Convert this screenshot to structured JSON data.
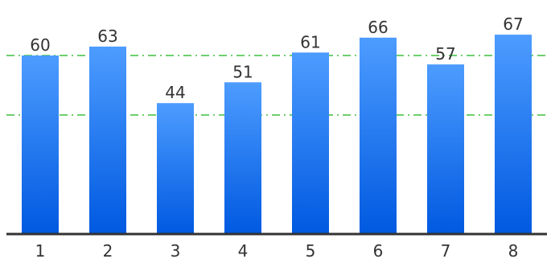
{
  "chart_data": {
    "type": "bar",
    "categories": [
      "1",
      "2",
      "3",
      "4",
      "5",
      "6",
      "7",
      "8"
    ],
    "values": [
      60,
      63,
      44,
      51,
      61,
      66,
      57,
      67
    ],
    "title": "",
    "xlabel": "",
    "ylabel": "",
    "ylim": [
      0,
      70
    ],
    "grid": false,
    "reference_lines": [
      {
        "value": 60,
        "style": "dash-dot",
        "color": "#3fbf3f"
      },
      {
        "value": 40,
        "style": "dash-dot",
        "color": "#3fbf3f"
      }
    ],
    "bar_gradient": {
      "top": "#4d9cff",
      "bottom": "#0059e0"
    },
    "axis_color": "#333333",
    "label_color": "#333333"
  }
}
